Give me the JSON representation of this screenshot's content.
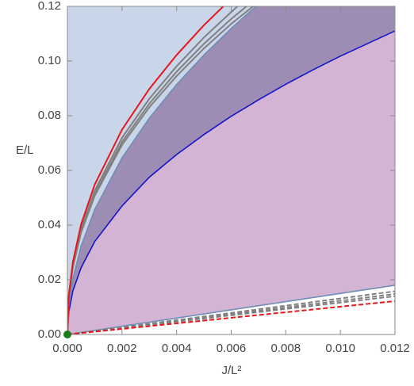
{
  "chart_data": {
    "type": "line",
    "xlabel": "J/L²",
    "ylabel": "E/L",
    "xlim": [
      0,
      0.012
    ],
    "ylim": [
      0,
      0.12
    ],
    "xticks": [
      {
        "value": 0,
        "label": "0.000"
      },
      {
        "value": 0.002,
        "label": "0.002"
      },
      {
        "value": 0.004,
        "label": "0.004"
      },
      {
        "value": 0.006,
        "label": "0.006"
      },
      {
        "value": 0.008,
        "label": "0.008"
      },
      {
        "value": 0.01,
        "label": "0.010"
      },
      {
        "value": 0.012,
        "label": "0.012"
      }
    ],
    "yticks": [
      {
        "value": 0,
        "label": "0.00"
      },
      {
        "value": 0.02,
        "label": "0.02"
      },
      {
        "value": 0.04,
        "label": "0.04"
      },
      {
        "value": 0.06,
        "label": "0.06"
      },
      {
        "value": 0.08,
        "label": "0.08"
      },
      {
        "value": 0.1,
        "label": "0.10"
      },
      {
        "value": 0.12,
        "label": "0.12"
      }
    ],
    "frame_color": "#8a8a8a",
    "series": [
      {
        "color": "#6f8db5",
        "fill": "#d4b4d4",
        "x": [
          0,
          0.012
        ],
        "values": [
          0,
          0.018
        ]
      },
      {
        "color": "#1414c8",
        "fill": "#9d8db4",
        "x": [
          0,
          5e-05,
          0.0002,
          0.0005,
          0.001,
          0.002,
          0.003,
          0.004,
          0.005,
          0.006,
          0.007,
          0.008,
          0.009,
          0.01,
          0.011,
          0.012
        ],
        "values": [
          0,
          0.0082,
          0.016,
          0.0244,
          0.034,
          0.047,
          0.0575,
          0.0658,
          0.0731,
          0.0798,
          0.0858,
          0.0915,
          0.0968,
          0.1018,
          0.1064,
          0.111
        ]
      },
      {
        "color": "#6f8db5",
        "fill": "#c9d6e9",
        "x": [
          0,
          5e-05,
          0.0002,
          0.0005,
          0.001,
          0.002,
          0.003,
          0.004,
          0.005,
          0.006,
          0.007
        ],
        "values": [
          0,
          0.0102,
          0.0204,
          0.0323,
          0.0457,
          0.0646,
          0.0791,
          0.0914,
          0.1022,
          0.1119,
          0.1209
        ]
      },
      {
        "color": "#808080",
        "x": [
          0,
          5e-05,
          0.0002,
          0.0005,
          0.001,
          0.002,
          0.003,
          0.004,
          0.005,
          0.006,
          0.007
        ],
        "values": [
          0,
          0.0131,
          0.0245,
          0.0372,
          0.0507,
          0.0693,
          0.0831,
          0.0945,
          0.1046,
          0.1136,
          0.1216
        ]
      },
      {
        "color": "#808080",
        "x": [
          0,
          5e-05,
          0.0002,
          0.0005,
          0.001,
          0.002,
          0.003,
          0.004,
          0.005,
          0.006,
          0.007
        ],
        "values": [
          0,
          0.0134,
          0.0249,
          0.0378,
          0.0515,
          0.0704,
          0.0844,
          0.0961,
          0.1063,
          0.1154,
          0.1236
        ]
      },
      {
        "color": "#808080",
        "x": [
          0,
          5e-05,
          0.0002,
          0.0005,
          0.001,
          0.002,
          0.003,
          0.004,
          0.005,
          0.006,
          0.007
        ],
        "values": [
          0,
          0.0137,
          0.0254,
          0.0386,
          0.0526,
          0.0719,
          0.0862,
          0.0981,
          0.1086,
          0.1179,
          0.127
        ]
      },
      {
        "color": "#e8161b",
        "x": [
          0,
          5e-05,
          0.0002,
          0.0005,
          0.001,
          0.002,
          0.003,
          0.004,
          0.005,
          0.006
        ],
        "values": [
          0,
          0.0142,
          0.0265,
          0.0402,
          0.0548,
          0.0749,
          0.0898,
          0.1022,
          0.1131,
          0.1228
        ]
      },
      {
        "color": "#808080",
        "dashed": true,
        "x": [
          0,
          0.012
        ],
        "values": [
          0,
          0.0158
        ]
      },
      {
        "color": "#808080",
        "dashed": true,
        "x": [
          0,
          0.012
        ],
        "values": [
          0,
          0.0148
        ]
      },
      {
        "color": "#808080",
        "dashed": true,
        "x": [
          0,
          0.012
        ],
        "values": [
          0,
          0.014
        ]
      },
      {
        "color": "#e8161b",
        "dashed": true,
        "x": [
          0,
          0.012
        ],
        "values": [
          0,
          0.0122
        ]
      }
    ],
    "points": [
      {
        "x": 0,
        "y": 0,
        "color": "#1c7a1c"
      }
    ]
  }
}
